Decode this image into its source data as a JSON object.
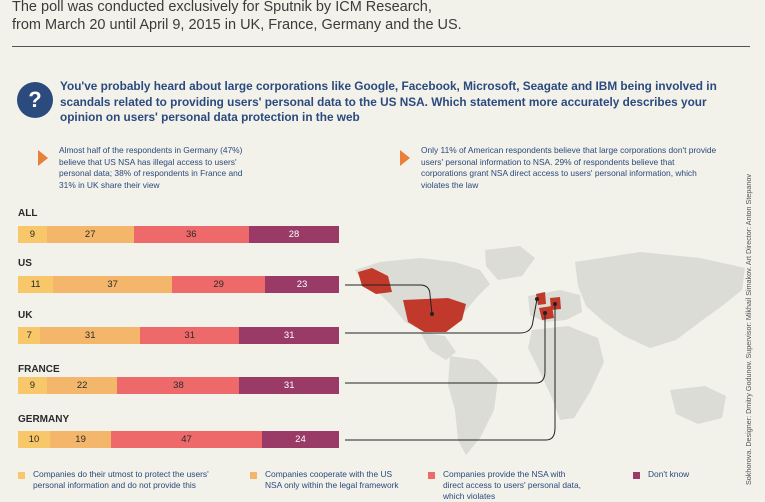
{
  "header": {
    "intro_line1": "The poll was conducted exclusively for Sputnik by ICM Research,",
    "intro_line2": "from March 20 until April 9, 2015 in UK, France, Germany and the US.",
    "question_icon": "?",
    "question": "You've probably heard about large corporations like Google, Facebook, Microsoft, Seagate and IBM being involved in scandals related to providing users' personal data to the US NSA. Which statement more accurately describes your opinion on users' personal data protection in the web"
  },
  "notes": {
    "germany": "Almost half of the respondents in Germany (47%) believe that US NSA has illegal access to users' personal data; 38% of respondents in France and 31% in UK share their view",
    "us": "Only 11% of American respondents believe that large corporations don't provide users' personal information to NSA. 29% of respondents believe that corporations grant NSA direct access to users' personal information, which violates the law"
  },
  "credits": "Sokhorova. Designer: Dmitry Godunov. Supervisor: Mikhail Simakov. Art Director: Anton Stepanov",
  "colors": {
    "protect": "#f7c76a",
    "cooperate": "#f4b66a",
    "direct": "#ee6a6a",
    "dontknow": "#993b66",
    "accent": "#e8803a",
    "title_blue": "#2b4a7e",
    "map_land": "#dcdcd6",
    "map_highlight": "#c0392b"
  },
  "chart_data": {
    "type": "bar",
    "stacked": true,
    "orientation": "horizontal",
    "categories": [
      "ALL",
      "US",
      "UK",
      "FRANCE",
      "GERMANY"
    ],
    "series": [
      {
        "name": "Companies do their utmost to protect the users' personal information and do not provide this",
        "values": [
          9,
          11,
          7,
          9,
          10
        ]
      },
      {
        "name": "Companies cooperate with the US NSA only within the legal framework",
        "values": [
          27,
          37,
          31,
          22,
          19
        ]
      },
      {
        "name": "Companies provide the NSA with direct access to users' personal data, which violates",
        "values": [
          36,
          29,
          31,
          38,
          47
        ]
      },
      {
        "name": "Don't know",
        "values": [
          28,
          23,
          31,
          31,
          24
        ]
      }
    ],
    "legend_labels": [
      "Companies do their utmost to protect the users' personal information and do not provide this",
      "Companies cooperate with the US NSA only within the legal framework",
      "Companies provide the NSA with direct access to users' personal data, which violates",
      "Don't know"
    ],
    "legend_position": "bottom"
  }
}
